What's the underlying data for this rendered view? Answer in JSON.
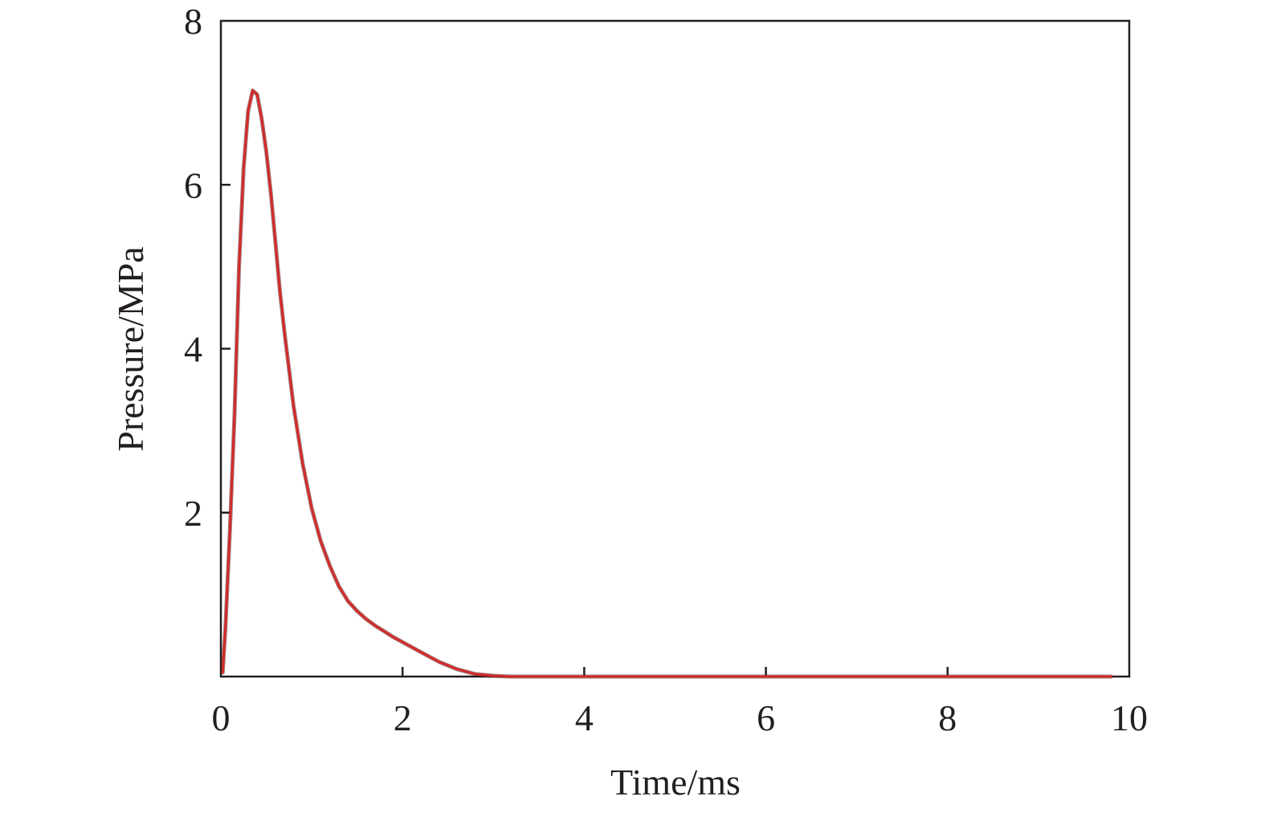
{
  "chart_data": {
    "type": "line",
    "title": "",
    "xlabel": "Time/ms",
    "ylabel": "Pressure/MPa",
    "xlim": [
      0,
      10
    ],
    "ylim": [
      0,
      8
    ],
    "x_ticks": [
      "0",
      "2",
      "4",
      "6",
      "8",
      "10"
    ],
    "y_ticks": [
      "2",
      "4",
      "6",
      "8"
    ],
    "grid": false,
    "legend": "none",
    "series": [
      {
        "color": "#d42a2a",
        "x": [
          0.02,
          0.05,
          0.1,
          0.15,
          0.2,
          0.25,
          0.3,
          0.35,
          0.4,
          0.45,
          0.5,
          0.55,
          0.6,
          0.65,
          0.7,
          0.8,
          0.9,
          1.0,
          1.1,
          1.2,
          1.3,
          1.4,
          1.5,
          1.6,
          1.7,
          1.8,
          1.9,
          2.0,
          2.2,
          2.4,
          2.6,
          2.8,
          3.0,
          3.2,
          3.5,
          4.0,
          5.0,
          6.0,
          7.0,
          8.0,
          9.0,
          9.8
        ],
        "y": [
          0.05,
          0.6,
          1.8,
          3.2,
          5.0,
          6.2,
          6.9,
          7.15,
          7.1,
          6.8,
          6.4,
          5.9,
          5.3,
          4.7,
          4.2,
          3.3,
          2.6,
          2.05,
          1.65,
          1.35,
          1.1,
          0.92,
          0.8,
          0.7,
          0.62,
          0.55,
          0.48,
          0.42,
          0.3,
          0.18,
          0.09,
          0.03,
          0.01,
          0.0,
          0.0,
          0.0,
          0.0,
          0.0,
          0.0,
          0.0,
          0.0,
          0.0
        ]
      }
    ]
  }
}
